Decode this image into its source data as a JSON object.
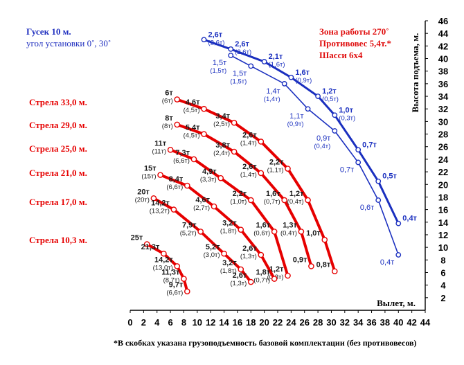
{
  "header": {
    "jib_title": "Гусек 10 м.",
    "jib_angle": "угол установки 0˚, 30˚",
    "zone": "Зона работы 270˚",
    "counterweight": "Противовес 5,4т.*",
    "chassis": "Шасси  6x4"
  },
  "footnote": "*В скобках указана грузоподъемность базовой комплектации (без противовесов)",
  "chart_data": {
    "type": "line",
    "xlabel": "Вылет, м.",
    "ylabel": "Высота подъема, м.",
    "xlim": [
      0,
      44
    ],
    "ylim": [
      0,
      46
    ],
    "xticks": [
      "0",
      "2",
      "4",
      "6",
      "8",
      "10",
      "12",
      "14",
      "16",
      "18",
      "20",
      "22",
      "24",
      "26",
      "28",
      "30",
      "32",
      "34",
      "36",
      "38",
      "40",
      "42",
      "44"
    ],
    "yticks": [
      "2",
      "4",
      "6",
      "8",
      "10",
      "12",
      "14",
      "16",
      "18",
      "20",
      "22",
      "24",
      "26",
      "28",
      "30",
      "32",
      "34",
      "36",
      "38",
      "40",
      "42",
      "44",
      "46"
    ],
    "colors": {
      "boom": "#e60000",
      "jib": "#1a2fbf",
      "label": "#1a1a1a"
    },
    "series": [
      {
        "name": "Стрела 33,0 м.",
        "kind": "boom",
        "x": [
          7.0,
          11.0,
          15.5,
          19.5,
          23.5,
          26.5,
          29.0,
          30.5
        ],
        "y": [
          33.5,
          32.0,
          29.8,
          26.8,
          22.5,
          17.5,
          11.2,
          6.2
        ],
        "labels": [
          {
            "x": 7.0,
            "y": 33.5,
            "main": "6т",
            "base": "(6т)"
          },
          {
            "x": 11.0,
            "y": 32.0,
            "main": "4,6т",
            "base": "(4,5т)"
          },
          {
            "x": 15.5,
            "y": 29.8,
            "main": "3,4т",
            "base": "(2,5т)"
          },
          {
            "x": 19.5,
            "y": 26.8,
            "main": "2,6т",
            "base": "(1,4т)"
          },
          {
            "x": 23.5,
            "y": 22.5,
            "main": "2,2т",
            "base": "(1,1т)"
          },
          {
            "x": 26.5,
            "y": 17.5,
            "main": "1,2т",
            "base": "(0,4т)"
          },
          {
            "x": 29.0,
            "y": 11.2,
            "main": "1,0т",
            "base": ""
          },
          {
            "x": 30.5,
            "y": 6.2,
            "main": "0,8т",
            "base": ""
          }
        ]
      },
      {
        "name": "Стрела 29,0 м.",
        "kind": "boom",
        "x": [
          7.0,
          11.0,
          15.5,
          19.5,
          23.0,
          25.5,
          27.0
        ],
        "y": [
          29.5,
          28.0,
          25.2,
          21.8,
          17.5,
          12.5,
          7.0
        ],
        "labels": [
          {
            "x": 7.0,
            "y": 29.5,
            "main": "8т",
            "base": "(8т)"
          },
          {
            "x": 11.0,
            "y": 28.0,
            "main": "5,4т",
            "base": "(4,5т)"
          },
          {
            "x": 15.5,
            "y": 25.2,
            "main": "3,8т",
            "base": "(2,4т)"
          },
          {
            "x": 19.5,
            "y": 21.8,
            "main": "2,6т",
            "base": "(1,4т)"
          },
          {
            "x": 23.0,
            "y": 17.5,
            "main": "1,6т",
            "base": "(0,7т)"
          },
          {
            "x": 25.5,
            "y": 12.5,
            "main": "1,3т",
            "base": "(0,4т)"
          },
          {
            "x": 27.0,
            "y": 7.0,
            "main": "0,9т",
            "base": ""
          }
        ]
      },
      {
        "name": "Стрела 25,0 м.",
        "kind": "boom",
        "x": [
          6.0,
          9.5,
          13.5,
          18.0,
          21.5,
          23.5
        ],
        "y": [
          25.5,
          24.0,
          21.0,
          17.5,
          12.5,
          5.5
        ],
        "labels": [
          {
            "x": 6.0,
            "y": 25.5,
            "main": "11т",
            "base": "(11т)"
          },
          {
            "x": 9.5,
            "y": 24.0,
            "main": "7,3т",
            "base": "(6,6т)"
          },
          {
            "x": 13.5,
            "y": 21.0,
            "main": "4,9т",
            "base": "(3,3т)"
          },
          {
            "x": 18.0,
            "y": 17.5,
            "main": "2,2т",
            "base": "(1,0т)"
          },
          {
            "x": 21.5,
            "y": 12.5,
            "main": "1,6т",
            "base": "(0,6т)"
          },
          {
            "x": 23.5,
            "y": 5.5,
            "main": "1,2т",
            "base": "(0,3т)"
          }
        ]
      },
      {
        "name": "Стрела 21,0 м.",
        "kind": "boom",
        "x": [
          4.5,
          8.5,
          12.5,
          16.5,
          19.5,
          21.5
        ],
        "y": [
          21.5,
          19.8,
          16.5,
          12.8,
          8.8,
          5.0
        ],
        "labels": [
          {
            "x": 4.5,
            "y": 21.5,
            "main": "15т",
            "base": "(15т)"
          },
          {
            "x": 8.5,
            "y": 19.8,
            "main": "8,4т",
            "base": "(6,6т)"
          },
          {
            "x": 12.5,
            "y": 16.5,
            "main": "4,6т",
            "base": "(2,7т)"
          },
          {
            "x": 16.5,
            "y": 12.8,
            "main": "3,2т",
            "base": "(1,8т)"
          },
          {
            "x": 19.5,
            "y": 8.8,
            "main": "2,6т",
            "base": "(1,3т)"
          },
          {
            "x": 21.5,
            "y": 5.0,
            "main": "1,8т",
            "base": "(0,7т)"
          }
        ]
      },
      {
        "name": "Стрела 17,0 м.",
        "kind": "boom",
        "x": [
          3.5,
          6.5,
          10.5,
          14.0,
          16.5,
          18.0
        ],
        "y": [
          17.8,
          16.0,
          12.5,
          9.0,
          6.5,
          4.5
        ],
        "labels": [
          {
            "x": 3.5,
            "y": 17.8,
            "main": "20т",
            "base": "(20т)"
          },
          {
            "x": 6.5,
            "y": 16.0,
            "main": "14,2т",
            "base": "(13,2т)"
          },
          {
            "x": 10.5,
            "y": 12.5,
            "main": "7,9т",
            "base": "(5,2т)"
          },
          {
            "x": 14.0,
            "y": 9.0,
            "main": "5,2т",
            "base": "(3,0т)"
          },
          {
            "x": 16.5,
            "y": 6.5,
            "main": "3,2т",
            "base": "(1,8т)"
          },
          {
            "x": 18.0,
            "y": 4.5,
            "main": "2,6т",
            "base": "(1,3т)"
          }
        ]
      },
      {
        "name": "Стрела 10,3 м.",
        "kind": "boom",
        "x": [
          2.5,
          5.0,
          7.0,
          8.0,
          8.5
        ],
        "y": [
          10.5,
          9.0,
          7.0,
          5.0,
          3.0
        ],
        "labels": [
          {
            "x": 2.5,
            "y": 10.5,
            "main": "25т",
            "base": ""
          },
          {
            "x": 5.0,
            "y": 9.0,
            "main": "21,3т",
            "base": ""
          },
          {
            "x": 7.0,
            "y": 7.0,
            "main": "14,2т",
            "base": "(13,0т)"
          },
          {
            "x": 8.0,
            "y": 5.0,
            "main": "11,3т",
            "base": "(8,7т)"
          },
          {
            "x": 8.5,
            "y": 3.0,
            "main": "9,7т",
            "base": "(6,6т)"
          }
        ]
      },
      {
        "name": "Гусек 10 м. 0˚",
        "kind": "jib",
        "x": [
          11.0,
          15.0,
          20.0,
          24.0,
          28.0,
          30.5,
          34.0,
          37.0,
          40.0
        ],
        "y": [
          43.0,
          41.5,
          39.5,
          37.0,
          34.0,
          31.0,
          25.5,
          20.5,
          13.8
        ],
        "labels": [
          {
            "x": 11.0,
            "y": 43.0,
            "main": "2,6т",
            "base": "(2,6т)"
          },
          {
            "x": 15.0,
            "y": 41.5,
            "main": "2,6т",
            "base": "(2,6т)"
          },
          {
            "x": 20.0,
            "y": 39.5,
            "main": "2,1т",
            "base": "(1,6т)"
          },
          {
            "x": 24.0,
            "y": 37.0,
            "main": "1,6т",
            "base": "(0,9т)"
          },
          {
            "x": 28.0,
            "y": 34.0,
            "main": "1,2т",
            "base": "(0,5т)"
          },
          {
            "x": 30.5,
            "y": 31.0,
            "main": "1,0т",
            "base": "(0,3т)"
          },
          {
            "x": 34.0,
            "y": 25.5,
            "main": "0,7т",
            "base": ""
          },
          {
            "x": 37.0,
            "y": 20.5,
            "main": "0,5т",
            "base": ""
          },
          {
            "x": 40.0,
            "y": 13.8,
            "main": "0,4т",
            "base": ""
          }
        ]
      },
      {
        "name": "Гусек 10 м. 30˚",
        "kind": "jib",
        "x": [
          15.0,
          18.0,
          23.0,
          26.5,
          30.5,
          34.0,
          37.0,
          40.0
        ],
        "y": [
          40.5,
          38.8,
          36.0,
          32.0,
          28.5,
          23.5,
          17.5,
          8.8
        ],
        "labels": [
          {
            "x": 15.0,
            "y": 40.5,
            "main": "1,5т",
            "base": "(1,5т)"
          },
          {
            "x": 18.0,
            "y": 38.8,
            "main": "1,5т",
            "base": "(1,5т)"
          },
          {
            "x": 23.0,
            "y": 36.0,
            "main": "1,4т",
            "base": "(1,4т)"
          },
          {
            "x": 26.5,
            "y": 32.0,
            "main": "1,1т",
            "base": "(0,9т)"
          },
          {
            "x": 30.5,
            "y": 28.5,
            "main": "0,9т",
            "base": "(0,4т)"
          },
          {
            "x": 34.0,
            "y": 23.5,
            "main": "0,7т",
            "base": ""
          },
          {
            "x": 37.0,
            "y": 17.5,
            "main": "0,6т",
            "base": ""
          },
          {
            "x": 40.0,
            "y": 8.8,
            "main": "0,4т",
            "base": ""
          }
        ]
      }
    ]
  }
}
